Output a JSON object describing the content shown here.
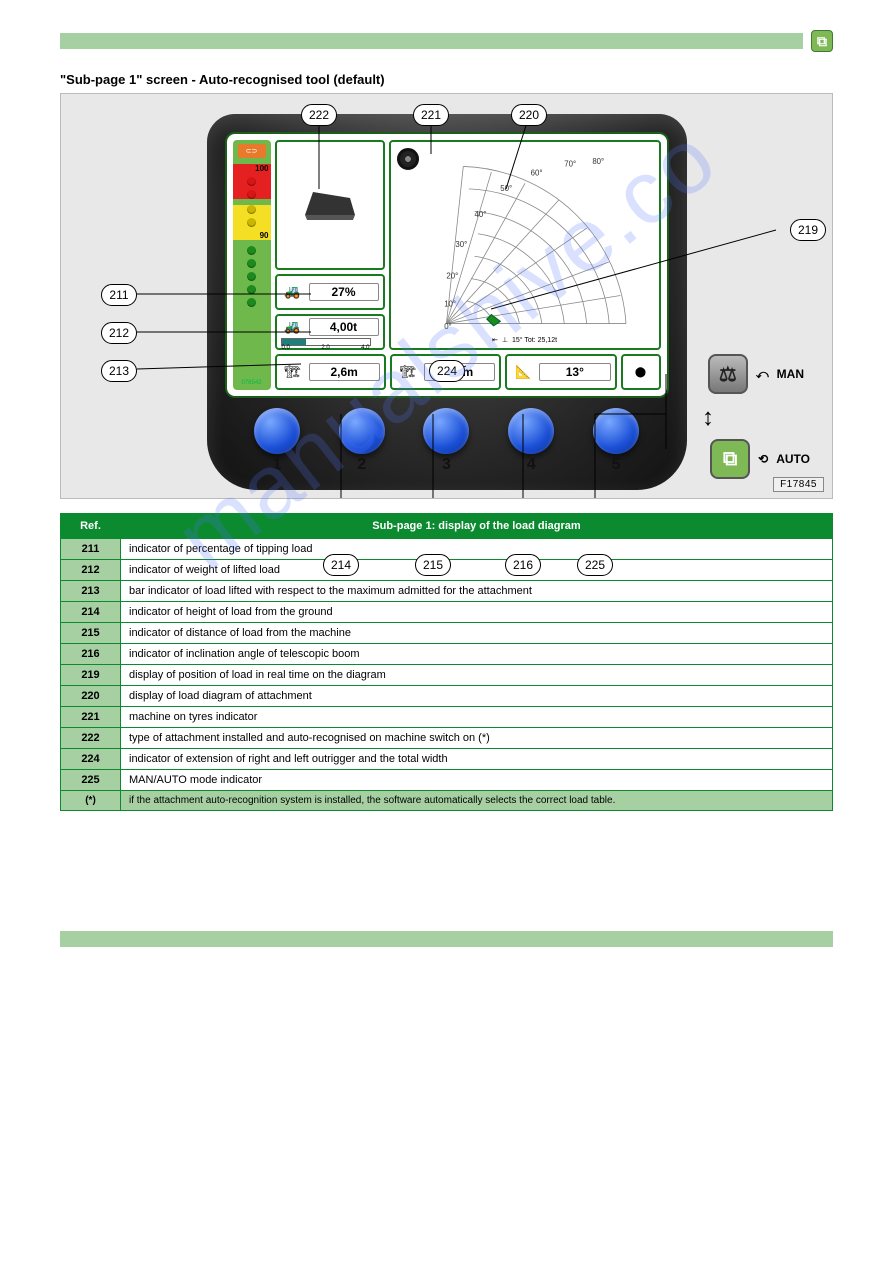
{
  "header": {
    "badge_glyph": "⧉"
  },
  "section": {
    "title": "\"Sub-page 1\" screen - Auto-recognised tool (default)"
  },
  "figure": {
    "id": "F17845",
    "watermark": "manualshive.co",
    "led": {
      "top_icon": "⊂⊃",
      "label100": "100",
      "label90": "90",
      "foot": "078542"
    },
    "screen": {
      "tile222_icon": "bucket",
      "val_211": "27%",
      "icon_211": "🚜",
      "val_212": "4,00t",
      "icon_212": "🚜",
      "progress_fill_pct": 28,
      "progress_ticks": [
        "0,0",
        "2,0",
        "4,0"
      ],
      "chart_angles": [
        "0°",
        "10°",
        "20°",
        "30°",
        "40°",
        "50°",
        "60°",
        "70°",
        "80°"
      ],
      "chart_footer": "15° Tot: 25,12t",
      "val_214": "2,6m",
      "icon_214": "🏗",
      "val_215": "3,9m",
      "icon_215": "🏗",
      "val_216": "13°",
      "icon_216": "📐"
    },
    "knobs": [
      "1",
      "2",
      "3",
      "4",
      "5"
    ],
    "modes": {
      "man_label": "MAN",
      "man_prefix": "⤺",
      "auto_label": "AUTO",
      "auto_prefix": "⟲",
      "kg_glyph": "kg",
      "auto_glyph": "⧉"
    },
    "callouts": {
      "c211": "211",
      "c212": "212",
      "c213": "213",
      "c214": "214",
      "c215": "215",
      "c216": "216",
      "c219": "219",
      "c220": "220",
      "c221": "221",
      "c222": "222",
      "c224": "224",
      "c225": "225"
    }
  },
  "table": {
    "h_ref": "Ref.",
    "h_desc": "Sub-page 1: display of the load diagram",
    "rows": [
      {
        "ref": "211",
        "desc": "indicator of percentage of tipping load"
      },
      {
        "ref": "212",
        "desc": "indicator of weight of lifted load"
      },
      {
        "ref": "213",
        "desc": "bar indicator of load lifted with respect to the maximum admitted for the attachment"
      },
      {
        "ref": "214",
        "desc": "indicator of height of load from the ground"
      },
      {
        "ref": "215",
        "desc": "indicator of distance of load from the machine"
      },
      {
        "ref": "216",
        "desc": "indicator of inclination angle of telescopic boom"
      },
      {
        "ref": "219",
        "desc": "display of position of load in real time on the diagram"
      },
      {
        "ref": "220",
        "desc": "display of load diagram of attachment"
      },
      {
        "ref": "221",
        "desc": "machine on tyres indicator"
      },
      {
        "ref": "222",
        "desc": "type of attachment installed and auto-recognised on machine switch on (*)"
      },
      {
        "ref": "224",
        "desc": "indicator of extension of right and left outrigger and the total width"
      },
      {
        "ref": "225",
        "desc": "MAN/AUTO mode indicator"
      },
      {
        "ref": "(*)",
        "desc": "if the attachment auto-recognition system is installed, the software automatically selects the correct load table."
      }
    ]
  },
  "footer": {
    "pagenum": ""
  },
  "style": {
    "brand_green": "#0b8a2f",
    "pale_green": "#a6cfa2",
    "knob_blue": "#1a4fd6",
    "callout_border": "#000000",
    "figure_bg": "#e8e8e8"
  }
}
